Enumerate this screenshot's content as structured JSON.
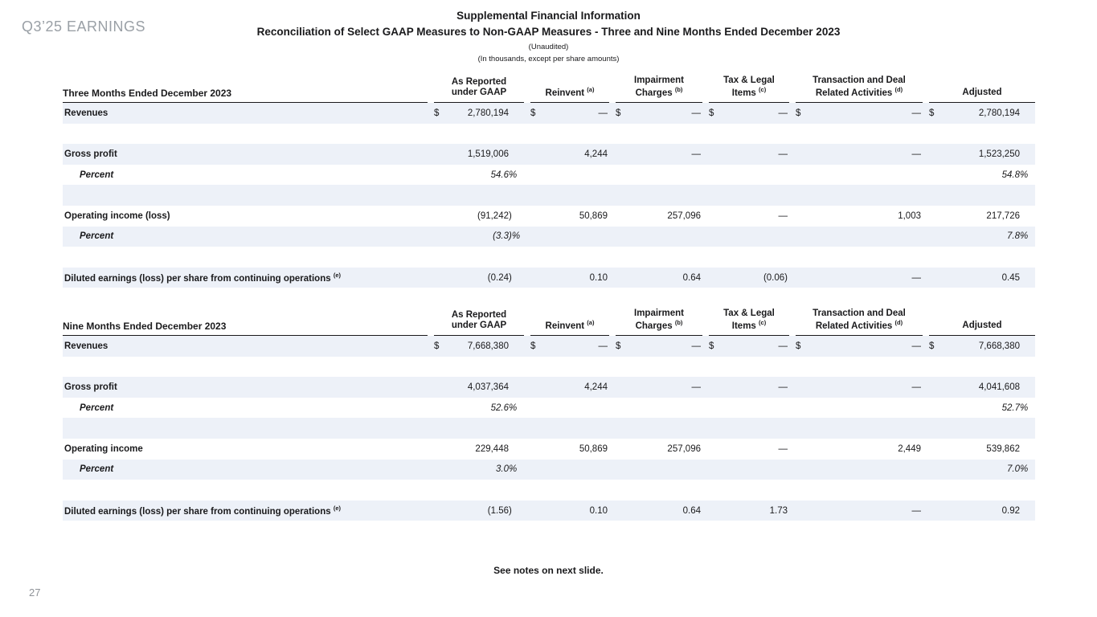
{
  "slide": {
    "brand": "Q3’25 EARNINGS",
    "title": "Supplemental Financial Information",
    "subtitle": "Reconciliation of Select GAAP Measures to Non-GAAP Measures - Three and Nine Months Ended December 2023",
    "note1": "(Unaudited)",
    "note2": "(In thousands, except per share amounts)",
    "footer_note": "See notes on next slide.",
    "page_number": "27"
  },
  "colors": {
    "stripe": "#edf1f8",
    "text": "#1a1a1c",
    "muted_gray": "#9aa0a6"
  },
  "column_headers": [
    {
      "key": "as-reported-under-gaap",
      "text": "As Reported\nunder GAAP",
      "sup": ""
    },
    {
      "key": "reinvent",
      "text": "Reinvent",
      "sup": "(a)"
    },
    {
      "key": "impairment-charges",
      "text": "Impairment\nCharges",
      "sup": "(b)"
    },
    {
      "key": "tax-legal-items",
      "text": "Tax & Legal\nItems",
      "sup": "(c)"
    },
    {
      "key": "transaction-deal-related-activities",
      "text": "Transaction and Deal\nRelated Activities",
      "sup": "(d)"
    },
    {
      "key": "adjusted",
      "text": "Adjusted",
      "sup": ""
    }
  ],
  "tables": [
    {
      "id": "table-three",
      "title": "Three Months Ended December 2023",
      "rows": [
        {
          "kind": "data",
          "label": "Revenues",
          "shaded": true,
          "dollar": true,
          "values": [
            "2,780,194",
            "—",
            "—",
            "—",
            "—",
            "2,780,194"
          ]
        },
        {
          "kind": "spacer",
          "shaded": false
        },
        {
          "kind": "data",
          "label": "Gross profit",
          "shaded": true,
          "values": [
            "1,519,006",
            "4,244",
            "—",
            "—",
            "—",
            "1,523,250"
          ]
        },
        {
          "kind": "data",
          "label": "Percent",
          "percent": true,
          "shaded": false,
          "values": [
            "54.6 %",
            "",
            "",
            "",
            "",
            "54.8 %"
          ]
        },
        {
          "kind": "spacer",
          "shaded": true
        },
        {
          "kind": "data",
          "label": "Operating income (loss)",
          "shaded": false,
          "values": [
            "(91,242)",
            "50,869",
            "257,096",
            "—",
            "1,003",
            "217,726"
          ]
        },
        {
          "kind": "data",
          "label": "Percent",
          "percent": true,
          "shaded": true,
          "values": [
            "(3.3)%",
            "",
            "",
            "",
            "",
            "7.8 %"
          ]
        },
        {
          "kind": "spacer",
          "shaded": false
        },
        {
          "kind": "data",
          "label": "Diluted earnings (loss) per share from continuing operations",
          "label_sup": "(e)",
          "shaded": true,
          "values": [
            "(0.24)",
            "0.10",
            "0.64",
            "(0.06)",
            "—",
            "0.45"
          ]
        }
      ]
    },
    {
      "id": "table-nine",
      "title": "Nine Months Ended December 2023",
      "rows": [
        {
          "kind": "data",
          "label": "Revenues",
          "shaded": true,
          "dollar": true,
          "values": [
            "7,668,380",
            "—",
            "—",
            "—",
            "—",
            "7,668,380"
          ]
        },
        {
          "kind": "spacer",
          "shaded": false
        },
        {
          "kind": "data",
          "label": "Gross profit",
          "shaded": true,
          "values": [
            "4,037,364",
            "4,244",
            "—",
            "—",
            "—",
            "4,041,608"
          ]
        },
        {
          "kind": "data",
          "label": "Percent",
          "percent": true,
          "shaded": false,
          "values": [
            "52.6 %",
            "",
            "",
            "",
            "",
            "52.7 %"
          ]
        },
        {
          "kind": "spacer",
          "shaded": true
        },
        {
          "kind": "data",
          "label": "Operating income",
          "shaded": false,
          "values": [
            "229,448",
            "50,869",
            "257,096",
            "—",
            "2,449",
            "539,862"
          ]
        },
        {
          "kind": "data",
          "label": "Percent",
          "percent": true,
          "shaded": true,
          "values": [
            "3.0 %",
            "",
            "",
            "",
            "",
            "7.0 %"
          ]
        },
        {
          "kind": "spacer",
          "shaded": false
        },
        {
          "kind": "data",
          "label": "Diluted earnings (loss) per share from continuing operations",
          "label_sup": "(e)",
          "shaded": true,
          "values": [
            "(1.56)",
            "0.10",
            "0.64",
            "1.73",
            "—",
            "0.92"
          ]
        }
      ]
    }
  ]
}
